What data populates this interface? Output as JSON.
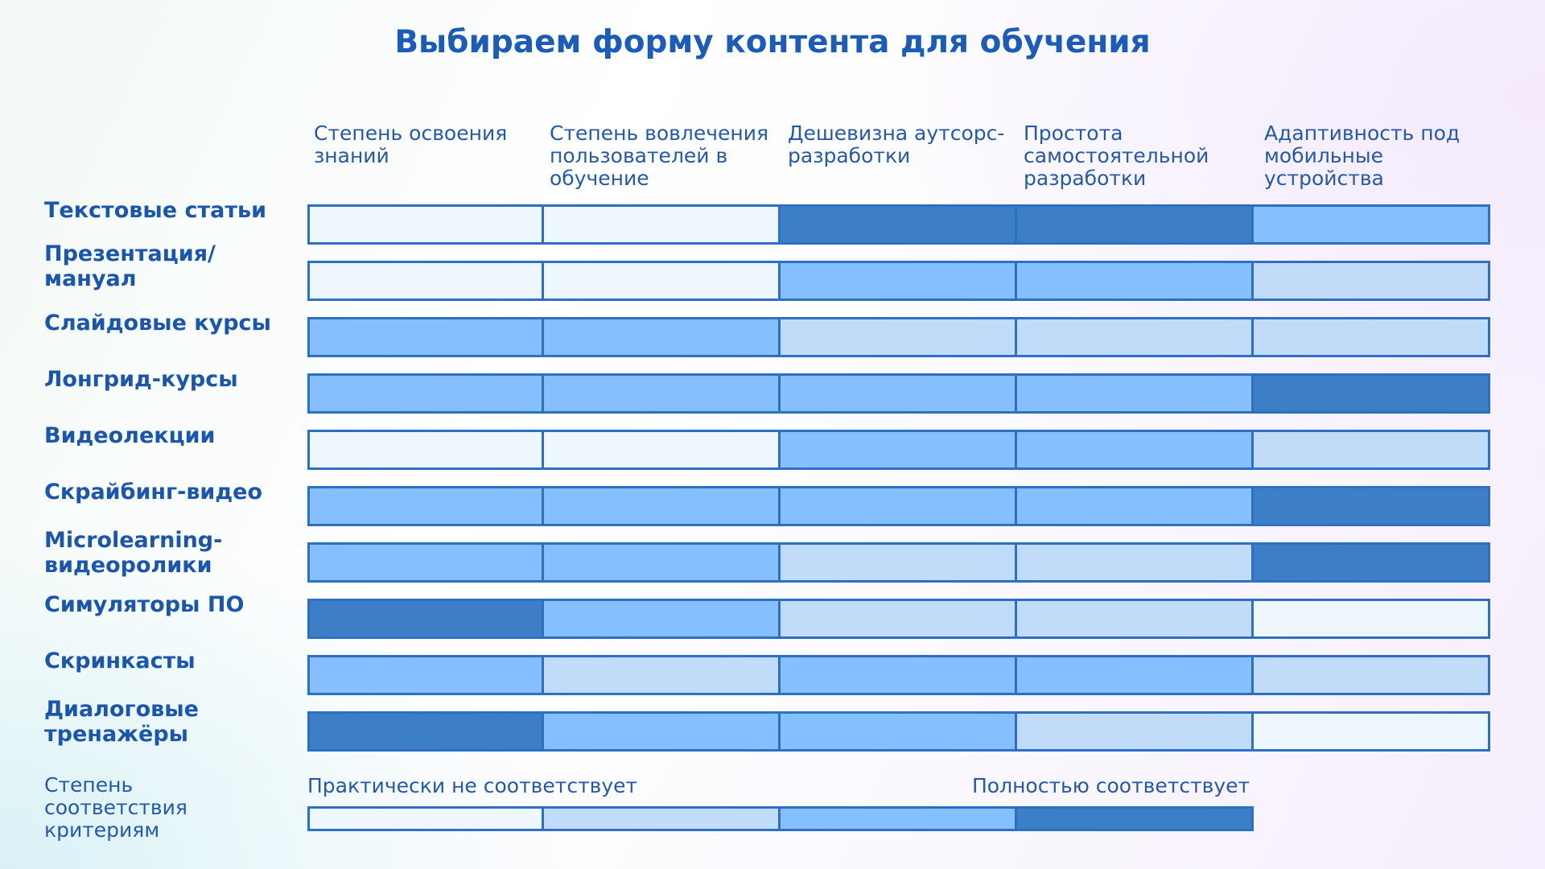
{
  "chart_data": {
    "type": "heatmap",
    "title": "Выбираем форму контента для обучения",
    "columns": [
      "Степень освоения знаний",
      "Степень вовлечения пользователей в обучение",
      "Дешевизна аутсорс-разработки",
      "Простота самостоятельной разработки",
      "Адаптивность под мобильные устройства"
    ],
    "rows": [
      "Текстовые статьи",
      "Презентация/мануал",
      "Слайдовые курсы",
      "Лонгрид-курсы",
      "Видеолекции",
      "Скрайбинг-видео",
      "Microlearning-видеоролики",
      "Симуляторы ПО",
      "Скринкасты",
      "Диалоговые тренажёры"
    ],
    "scale_min": 1,
    "scale_max": 4,
    "values": [
      [
        1,
        1,
        4,
        4,
        3
      ],
      [
        1,
        1,
        3,
        3,
        2
      ],
      [
        3,
        3,
        2,
        2,
        2
      ],
      [
        3,
        3,
        3,
        3,
        4
      ],
      [
        1,
        1,
        3,
        3,
        2
      ],
      [
        3,
        3,
        3,
        3,
        4
      ],
      [
        3,
        3,
        2,
        2,
        4
      ],
      [
        4,
        3,
        2,
        2,
        1
      ],
      [
        3,
        2,
        3,
        3,
        2
      ],
      [
        4,
        3,
        3,
        2,
        1
      ]
    ],
    "legend": {
      "title": "Степень соответствия критериям",
      "low_label": "Практически не соответствует",
      "high_label": "Полностью соответствует",
      "levels": [
        1,
        2,
        3,
        4
      ]
    },
    "colors": {
      "1": "#eef7fd",
      "2": "#c1dcf8",
      "3": "#86bffd",
      "4": "#3d7fc6",
      "border": "#2c6fc3",
      "title": "#1b5cb8",
      "text": "#2459a8"
    }
  }
}
